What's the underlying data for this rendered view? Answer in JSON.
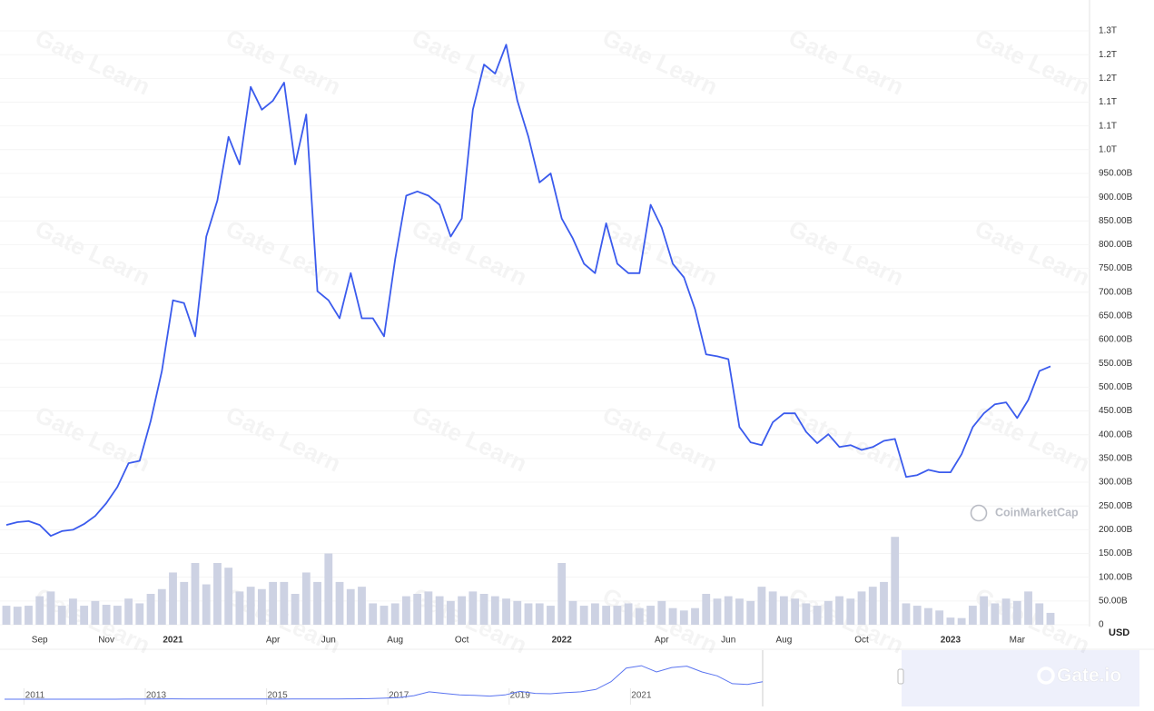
{
  "chart_data": [
    {
      "type": "line",
      "watermark": "Gate Learn",
      "source": "CoinMarketCap",
      "currency_label": "USD",
      "logo": "Gate.io",
      "grid": true,
      "ylim": [
        0,
        1310
      ],
      "yticks": [
        0,
        {
          "value": 50,
          "label": "50.00B"
        },
        {
          "value": 100,
          "label": "100.00B"
        },
        {
          "value": 150,
          "label": "150.00B"
        },
        {
          "value": 200,
          "label": "200.00B"
        },
        {
          "value": 250,
          "label": "250.00B"
        },
        {
          "value": 300,
          "label": "300.00B"
        },
        {
          "value": 350,
          "label": "350.00B"
        },
        {
          "value": 400,
          "label": "400.00B"
        },
        {
          "value": 450,
          "label": "450.00B"
        },
        {
          "value": 500,
          "label": "500.00B"
        },
        {
          "value": 550,
          "label": "550.00B"
        },
        {
          "value": 600,
          "label": "600.00B"
        },
        {
          "value": 650,
          "label": "650.00B"
        },
        {
          "value": 700,
          "label": "700.00B"
        },
        {
          "value": 750,
          "label": "750.00B"
        },
        {
          "value": 800,
          "label": "800.00B"
        },
        {
          "value": 850,
          "label": "850.00B"
        },
        {
          "value": 900,
          "label": "900.00B"
        },
        {
          "value": 950,
          "label": "950.00B"
        },
        {
          "value": 1000,
          "label": "1.0T"
        },
        {
          "value": 1050,
          "label": "1.1T"
        },
        {
          "value": 1100,
          "label": "1.1T"
        },
        {
          "value": 1150,
          "label": "1.2T"
        },
        {
          "value": 1200,
          "label": "1.2T"
        },
        {
          "value": 1250,
          "label": "1.3T"
        }
      ],
      "categories": [
        null,
        null,
        null,
        "Sep",
        null,
        null,
        null,
        null,
        null,
        "Nov",
        null,
        null,
        null,
        null,
        null,
        "2021",
        null,
        null,
        null,
        null,
        null,
        null,
        null,
        null,
        "Apr",
        null,
        null,
        null,
        null,
        "Jun",
        null,
        null,
        null,
        null,
        null,
        "Aug",
        null,
        null,
        null,
        null,
        null,
        "Oct",
        null,
        null,
        null,
        null,
        null,
        null,
        null,
        null,
        "2022",
        null,
        null,
        null,
        null,
        null,
        null,
        null,
        null,
        "Apr",
        null,
        null,
        null,
        null,
        null,
        "Jun",
        null,
        null,
        null,
        null,
        "Aug",
        null,
        null,
        null,
        null,
        null,
        null,
        "Oct",
        null,
        null,
        null,
        null,
        null,
        null,
        null,
        "2023",
        null,
        null,
        null,
        null,
        null,
        "Mar",
        null,
        null,
        null
      ],
      "series": [
        {
          "type": "line",
          "color": "#3b5bed",
          "values": [
            210,
            216,
            218,
            210,
            187,
            197,
            200,
            212,
            229,
            256,
            290,
            340,
            345,
            429,
            534,
            683,
            677,
            607,
            817,
            893,
            1027,
            969,
            1132,
            1084,
            1103,
            1141,
            969,
            1074,
            702,
            683,
            645,
            740,
            645,
            645,
            607,
            769,
            903,
            912,
            903,
            884,
            817,
            855,
            1084,
            1179,
            1160,
            1221,
            1103,
            1027,
            931,
            950,
            855,
            813,
            760,
            740,
            845,
            760,
            740,
            740,
            884,
            836,
            760,
            731,
            664,
            569,
            565,
            559,
            416,
            384,
            378,
            426,
            445,
            445,
            406,
            382,
            401,
            374,
            378,
            368,
            374,
            387,
            391,
            311,
            315,
            326,
            321,
            321,
            359,
            416,
            445,
            464,
            468,
            435,
            473,
            534,
            544
          ]
        },
        {
          "type": "bar",
          "color": "#cdd2e3",
          "values": [
            40,
            38,
            40,
            60,
            70,
            40,
            55,
            40,
            50,
            42,
            40,
            55,
            45,
            65,
            75,
            110,
            90,
            130,
            85,
            130,
            120,
            70,
            80,
            75,
            90,
            90,
            65,
            110,
            90,
            150,
            90,
            75,
            80,
            45,
            40,
            45,
            60,
            65,
            70,
            60,
            50,
            60,
            70,
            65,
            60,
            55,
            50,
            45,
            45,
            40,
            130,
            50,
            40,
            45,
            40,
            40,
            45,
            35,
            40,
            50,
            35,
            30,
            35,
            65,
            55,
            60,
            55,
            50,
            80,
            70,
            60,
            55,
            45,
            40,
            50,
            60,
            55,
            70,
            80,
            90,
            185,
            45,
            40,
            35,
            30,
            15,
            14,
            40,
            60,
            45,
            55,
            50,
            70,
            45,
            25
          ]
        }
      ]
    },
    {
      "type": "line",
      "ylim": [
        0,
        1400
      ],
      "categories": [
        null,
        null,
        "2011",
        null,
        null,
        null,
        null,
        null,
        null,
        null,
        "2013",
        null,
        null,
        null,
        null,
        null,
        null,
        null,
        "2015",
        null,
        null,
        null,
        null,
        null,
        null,
        null,
        "2017",
        null,
        null,
        null,
        null,
        null,
        null,
        null,
        "2019",
        null,
        null,
        null,
        null,
        null,
        null,
        null,
        "2021",
        null,
        null,
        null,
        null,
        null,
        null,
        null,
        null
      ],
      "series": [
        {
          "type": "line",
          "color": "#5a74f0",
          "values": [
            0,
            1,
            1,
            1,
            1,
            1,
            1,
            1,
            2,
            3,
            4,
            10,
            8,
            6,
            5,
            5,
            4,
            4,
            3,
            4,
            5,
            6,
            7,
            10,
            15,
            25,
            40,
            90,
            190,
            150,
            110,
            100,
            80,
            110,
            200,
            150,
            140,
            170,
            190,
            250,
            450,
            800,
            860,
            700,
            815,
            850,
            700,
            600,
            400,
            380,
            450
          ]
        }
      ]
    }
  ]
}
